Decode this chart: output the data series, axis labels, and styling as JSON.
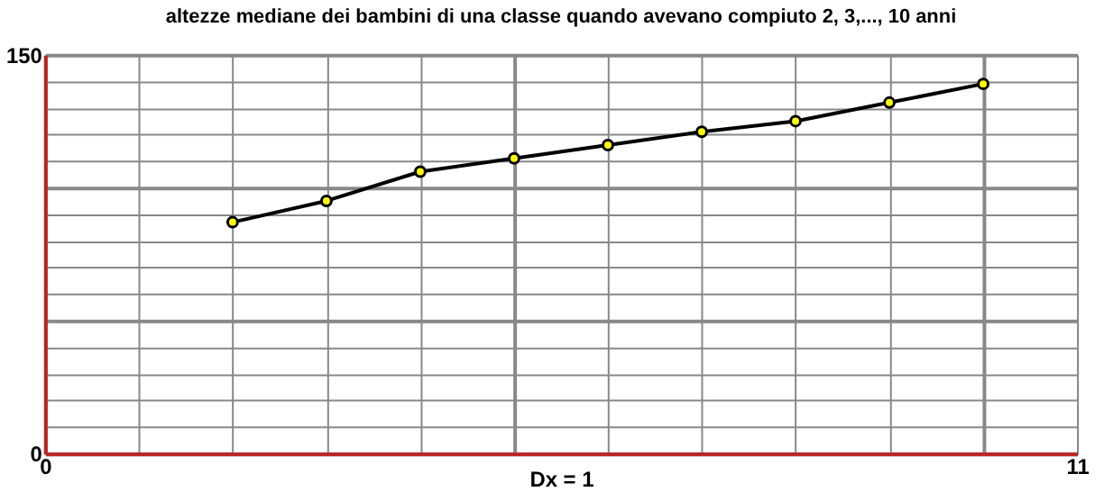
{
  "chart_data": {
    "type": "line",
    "title": "altezze mediane dei bambini di una classe quando avevano compiuto 2, 3,..., 10 anni",
    "xlabel": "Dx = 1",
    "x": [
      2,
      3,
      4,
      5,
      6,
      7,
      8,
      9,
      10
    ],
    "series": [
      {
        "color": "#000000",
        "values": [
          87,
          95,
          106,
          111,
          116,
          121,
          125,
          132,
          139
        ]
      }
    ],
    "xlim": [
      0,
      11
    ],
    "ylim": [
      0,
      150
    ],
    "xticks": [
      0,
      {
        "value": 1,
        "label": null
      },
      {
        "value": 2,
        "label": null
      },
      {
        "value": 3,
        "label": null
      },
      {
        "value": 4,
        "label": null
      },
      {
        "value": 5,
        "label": null
      },
      {
        "value": 6,
        "label": null
      },
      {
        "value": 7,
        "label": null
      },
      {
        "value": 8,
        "label": null
      },
      {
        "value": 9,
        "label": null
      },
      {
        "value": 10,
        "label": null
      },
      11
    ],
    "yticks": [
      0,
      {
        "value": 10,
        "label": null
      },
      {
        "value": 20,
        "label": null
      },
      {
        "value": 30,
        "label": null
      },
      {
        "value": 40,
        "label": null
      },
      {
        "value": 50,
        "label": null
      },
      {
        "value": 60,
        "label": null
      },
      {
        "value": 70,
        "label": null
      },
      {
        "value": 80,
        "label": null
      },
      {
        "value": 90,
        "label": null
      },
      {
        "value": 100,
        "label": null
      },
      {
        "value": 110,
        "label": null
      },
      {
        "value": 120,
        "label": null
      },
      {
        "value": 130,
        "label": null
      },
      {
        "value": 140,
        "label": null
      },
      150
    ],
    "grid": true,
    "marker": "circle",
    "line_style": "solid"
  }
}
